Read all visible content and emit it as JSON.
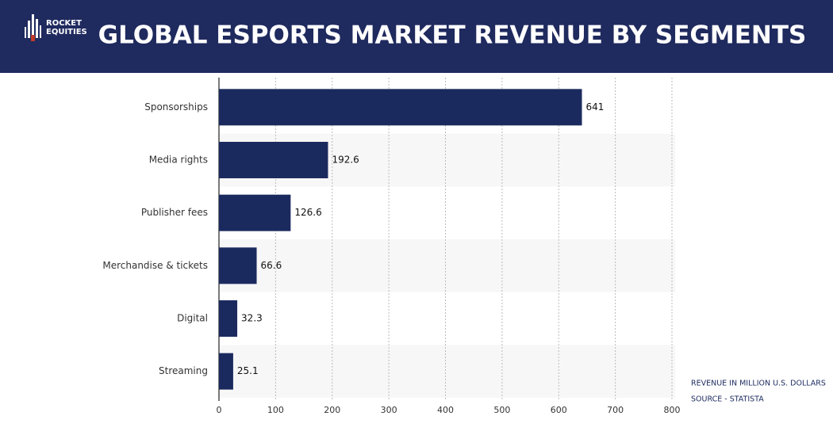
{
  "logo": {
    "line1": "ROCKET",
    "line2": "EQUITIES"
  },
  "chart_data": {
    "type": "bar",
    "orientation": "horizontal",
    "title": "GLOBAL ESPORTS MARKET REVENUE BY SEGMENTS",
    "categories": [
      "Sponsorships",
      "Media rights",
      "Publisher fees",
      "Merchandise & tickets",
      "Digital",
      "Streaming"
    ],
    "values": [
      641,
      192.6,
      126.6,
      66.6,
      32.3,
      25.1
    ],
    "color": "#1b2a5e",
    "xlim": [
      0,
      800
    ],
    "xticks": [
      0,
      100,
      200,
      300,
      400,
      500,
      600,
      700,
      800
    ],
    "grid": true,
    "notes": [
      "REVENUE IN MILLION U.S. DOLLARS",
      "SOURCE - STATISTA"
    ]
  }
}
